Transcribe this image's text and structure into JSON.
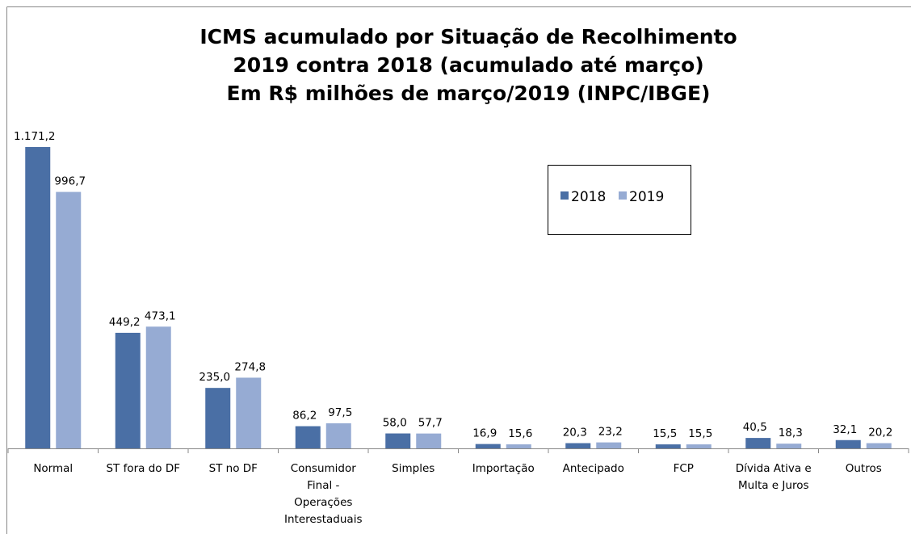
{
  "chart_data": {
    "type": "bar",
    "title": [
      "ICMS acumulado por Situação de Recolhimento",
      "2019 contra 2018 (acumulado até março)",
      "Em R$ milhões de março/2019 (INPC/IBGE)"
    ],
    "categories": [
      "Normal",
      "ST fora do DF",
      "ST no DF",
      "Consumidor Final - Operações Interestaduais",
      "Simples",
      "Importação",
      "Antecipado",
      "FCP",
      "Dívida Ativa e Multa e Juros",
      "Outros"
    ],
    "series": [
      {
        "name": "2018",
        "color": "#4a6fa5",
        "values": [
          1171.2,
          449.2,
          235.0,
          86.2,
          58.0,
          16.9,
          20.3,
          15.5,
          40.5,
          32.1
        ],
        "value_labels": [
          "1.171,2",
          "449,2",
          "235,0",
          "86,2",
          "58,0",
          "16,9",
          "20,3",
          "15,5",
          "40,5",
          "32,1"
        ]
      },
      {
        "name": "2019",
        "color": "#96abd3",
        "values": [
          996.7,
          473.1,
          274.8,
          97.5,
          57.7,
          15.6,
          23.2,
          15.5,
          18.3,
          20.2
        ],
        "value_labels": [
          "996,7",
          "473,1",
          "274,8",
          "97,5",
          "57,7",
          "15,6",
          "23,2",
          "15,5",
          "18,3",
          "20,2"
        ]
      }
    ],
    "legend": "upper right"
  }
}
